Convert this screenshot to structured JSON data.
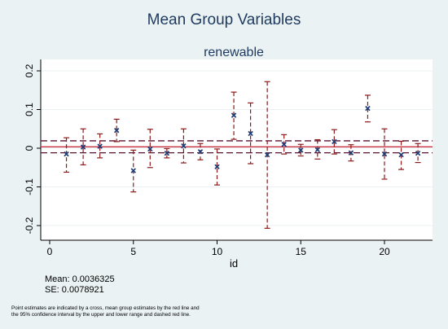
{
  "chart_data": {
    "type": "scatter",
    "title": "Mean Group Variables",
    "subtitle": "renewable",
    "xlabel": "id",
    "ylabel": "",
    "xlim": [
      -1,
      23
    ],
    "ylim": [
      -0.215,
      0.215
    ],
    "xticks": [
      0,
      5,
      10,
      15,
      20
    ],
    "yticks": [
      -0.2,
      -0.1,
      0,
      0.1,
      0.2
    ],
    "xtick_labels": [
      "0",
      "5",
      "10",
      "15",
      "20"
    ],
    "ytick_labels": [
      "-0.2",
      "-0.1",
      "0",
      "0.1",
      "0.2"
    ],
    "grid": "horizontal",
    "points": [
      {
        "id": 1,
        "estimate": -0.015,
        "lower": -0.062,
        "upper": 0.027
      },
      {
        "id": 2,
        "estimate": 0.003,
        "lower": -0.043,
        "upper": 0.05
      },
      {
        "id": 3,
        "estimate": 0.005,
        "lower": -0.025,
        "upper": 0.037
      },
      {
        "id": 4,
        "estimate": 0.046,
        "lower": 0.017,
        "upper": 0.075
      },
      {
        "id": 5,
        "estimate": -0.058,
        "lower": -0.113,
        "upper": -0.005
      },
      {
        "id": 6,
        "estimate": -0.002,
        "lower": -0.05,
        "upper": 0.049
      },
      {
        "id": 7,
        "estimate": -0.013,
        "lower": -0.025,
        "upper": -0.001
      },
      {
        "id": 8,
        "estimate": 0.006,
        "lower": -0.038,
        "upper": 0.05
      },
      {
        "id": 9,
        "estimate": -0.009,
        "lower": -0.03,
        "upper": 0.012
      },
      {
        "id": 10,
        "estimate": -0.048,
        "lower": -0.095,
        "upper": -0.002
      },
      {
        "id": 11,
        "estimate": 0.085,
        "lower": 0.023,
        "upper": 0.145
      },
      {
        "id": 12,
        "estimate": 0.038,
        "lower": -0.04,
        "upper": 0.117
      },
      {
        "id": 13,
        "estimate": -0.017,
        "lower": -0.207,
        "upper": 0.172
      },
      {
        "id": 14,
        "estimate": 0.01,
        "lower": -0.015,
        "upper": 0.035
      },
      {
        "id": 15,
        "estimate": -0.005,
        "lower": -0.02,
        "upper": 0.01
      },
      {
        "id": 16,
        "estimate": -0.004,
        "lower": -0.028,
        "upper": 0.022
      },
      {
        "id": 17,
        "estimate": 0.017,
        "lower": -0.015,
        "upper": 0.048
      },
      {
        "id": 18,
        "estimate": -0.012,
        "lower": -0.033,
        "upper": 0.009
      },
      {
        "id": 19,
        "estimate": 0.103,
        "lower": 0.068,
        "upper": 0.137
      },
      {
        "id": 20,
        "estimate": -0.015,
        "lower": -0.08,
        "upper": 0.05
      },
      {
        "id": 21,
        "estimate": -0.017,
        "lower": -0.055,
        "upper": 0.018
      },
      {
        "id": 22,
        "estimate": -0.013,
        "lower": -0.037,
        "upper": 0.012
      }
    ],
    "mean_group": {
      "estimate": 0.0036325,
      "lower": -0.0118,
      "upper": 0.0191
    },
    "colors": {
      "point": "#1f3c74",
      "ci_line": "#8b1a1a",
      "mean_line": "#c83040",
      "mean_ci": "#5b1230",
      "grid": "#ffffff",
      "plot_bg": "#ffffff",
      "outer_bg": "#eaf2f3"
    }
  },
  "stats": {
    "mean_text": "Mean: 0.0036325",
    "se_text": "SE: 0.0078921"
  },
  "note": {
    "line1": "Point estimates are indicated by a cross, mean group estimates by the red line and",
    "line2": "the 95% confidence interval by the upper and lower range and dashed red line."
  }
}
